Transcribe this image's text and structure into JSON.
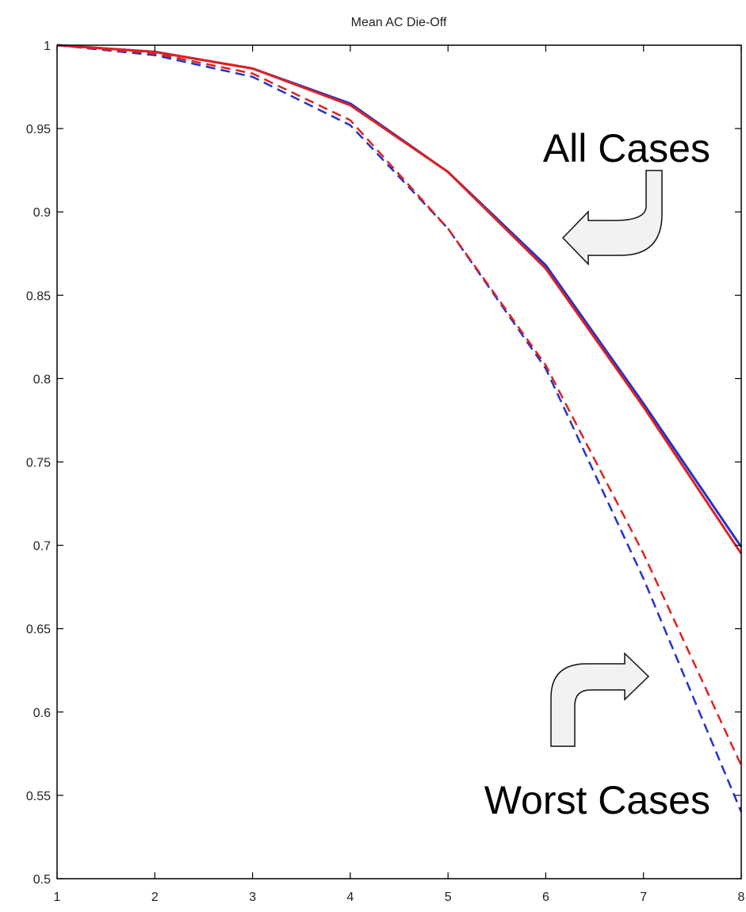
{
  "chart_data": {
    "type": "line",
    "title": "Mean AC Die-Off",
    "xlabel": "",
    "ylabel": "",
    "xlim": [
      1,
      8
    ],
    "ylim": [
      0.5,
      1
    ],
    "x_ticks": [
      1,
      2,
      3,
      4,
      5,
      6,
      7,
      8
    ],
    "x_tick_labels": [
      "1",
      "2",
      "3",
      "4",
      "5",
      "6",
      "7",
      "8"
    ],
    "y_ticks": [
      0.5,
      0.55,
      0.6,
      0.65,
      0.7,
      0.75,
      0.8,
      0.85,
      0.9,
      0.95,
      1
    ],
    "y_tick_labels": [
      "0.5",
      "0.55",
      "0.6",
      "0.65",
      "0.7",
      "0.75",
      "0.8",
      "0.85",
      "0.9",
      "0.95",
      "1"
    ],
    "grid": false,
    "x": [
      1,
      2,
      3,
      4,
      5,
      6,
      7,
      8
    ],
    "series": [
      {
        "color": "#2233cc",
        "dash": "solid",
        "values": [
          1.0,
          0.996,
          0.986,
          0.965,
          0.924,
          0.868,
          0.785,
          0.699
        ]
      },
      {
        "color": "#dd2222",
        "dash": "solid",
        "values": [
          1.0,
          0.996,
          0.986,
          0.964,
          0.924,
          0.866,
          0.783,
          0.695
        ]
      },
      {
        "color": "#2233cc",
        "dash": "dashed",
        "values": [
          1.0,
          0.994,
          0.981,
          0.952,
          0.89,
          0.806,
          0.68,
          0.54
        ]
      },
      {
        "color": "#dd2222",
        "dash": "dashed",
        "values": [
          1.0,
          0.995,
          0.983,
          0.955,
          0.89,
          0.808,
          0.695,
          0.568
        ]
      }
    ],
    "annotations": [
      {
        "text": "All Cases",
        "arrow": "left-pointing"
      },
      {
        "text": "Worst Cases",
        "arrow": "right-pointing"
      }
    ]
  }
}
